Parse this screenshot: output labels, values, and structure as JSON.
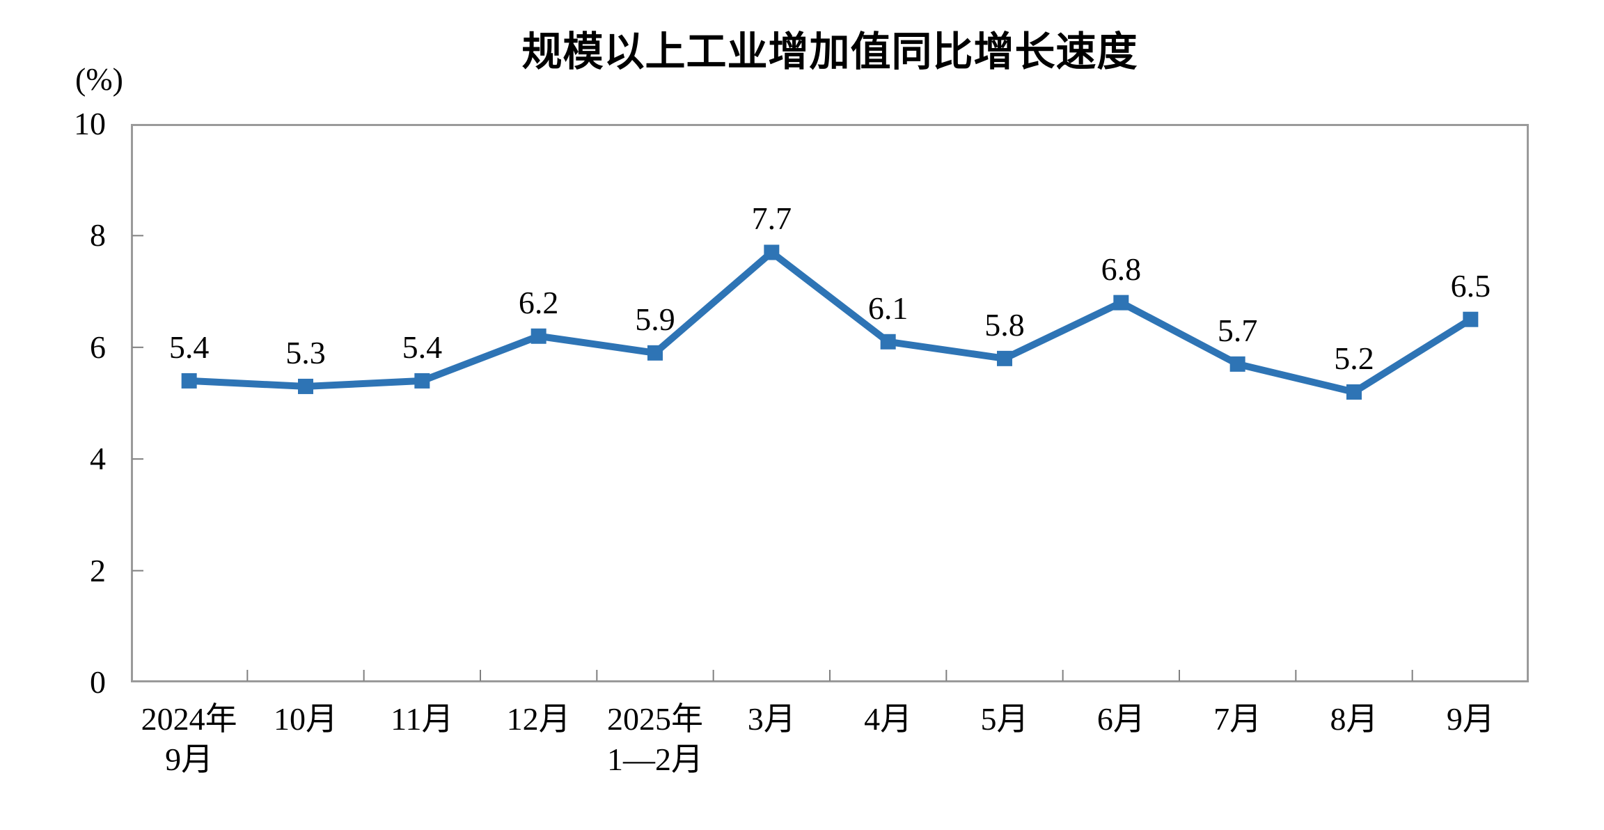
{
  "chart_data": {
    "type": "line",
    "title": "规模以上工业增加值同比增长速度",
    "unit_label": "(%)",
    "categories": [
      "2024年\n9月",
      "10月",
      "11月",
      "12月",
      "2025年\n1—2月",
      "3月",
      "4月",
      "5月",
      "6月",
      "7月",
      "8月",
      "9月"
    ],
    "values": [
      5.4,
      5.3,
      5.4,
      6.2,
      5.9,
      7.7,
      6.1,
      5.8,
      6.8,
      5.7,
      5.2,
      6.5
    ],
    "data_labels": [
      "5.4",
      "5.3",
      "5.4",
      "6.2",
      "5.9",
      "7.7",
      "6.1",
      "5.8",
      "6.8",
      "5.7",
      "5.2",
      "6.5"
    ],
    "xlabel": "",
    "ylabel": "(%)",
    "ylim": [
      0,
      10
    ],
    "y_ticks": [
      0,
      2,
      4,
      6,
      8,
      10
    ],
    "grid": "off",
    "legend": "none",
    "marker": "square",
    "colors": {
      "line": "#2E74B5",
      "marker": "#2E74B5",
      "axis_border": "#9A9A9A",
      "tick": "#7F7F7F",
      "text": "#000000",
      "background": "#FFFFFF"
    }
  }
}
